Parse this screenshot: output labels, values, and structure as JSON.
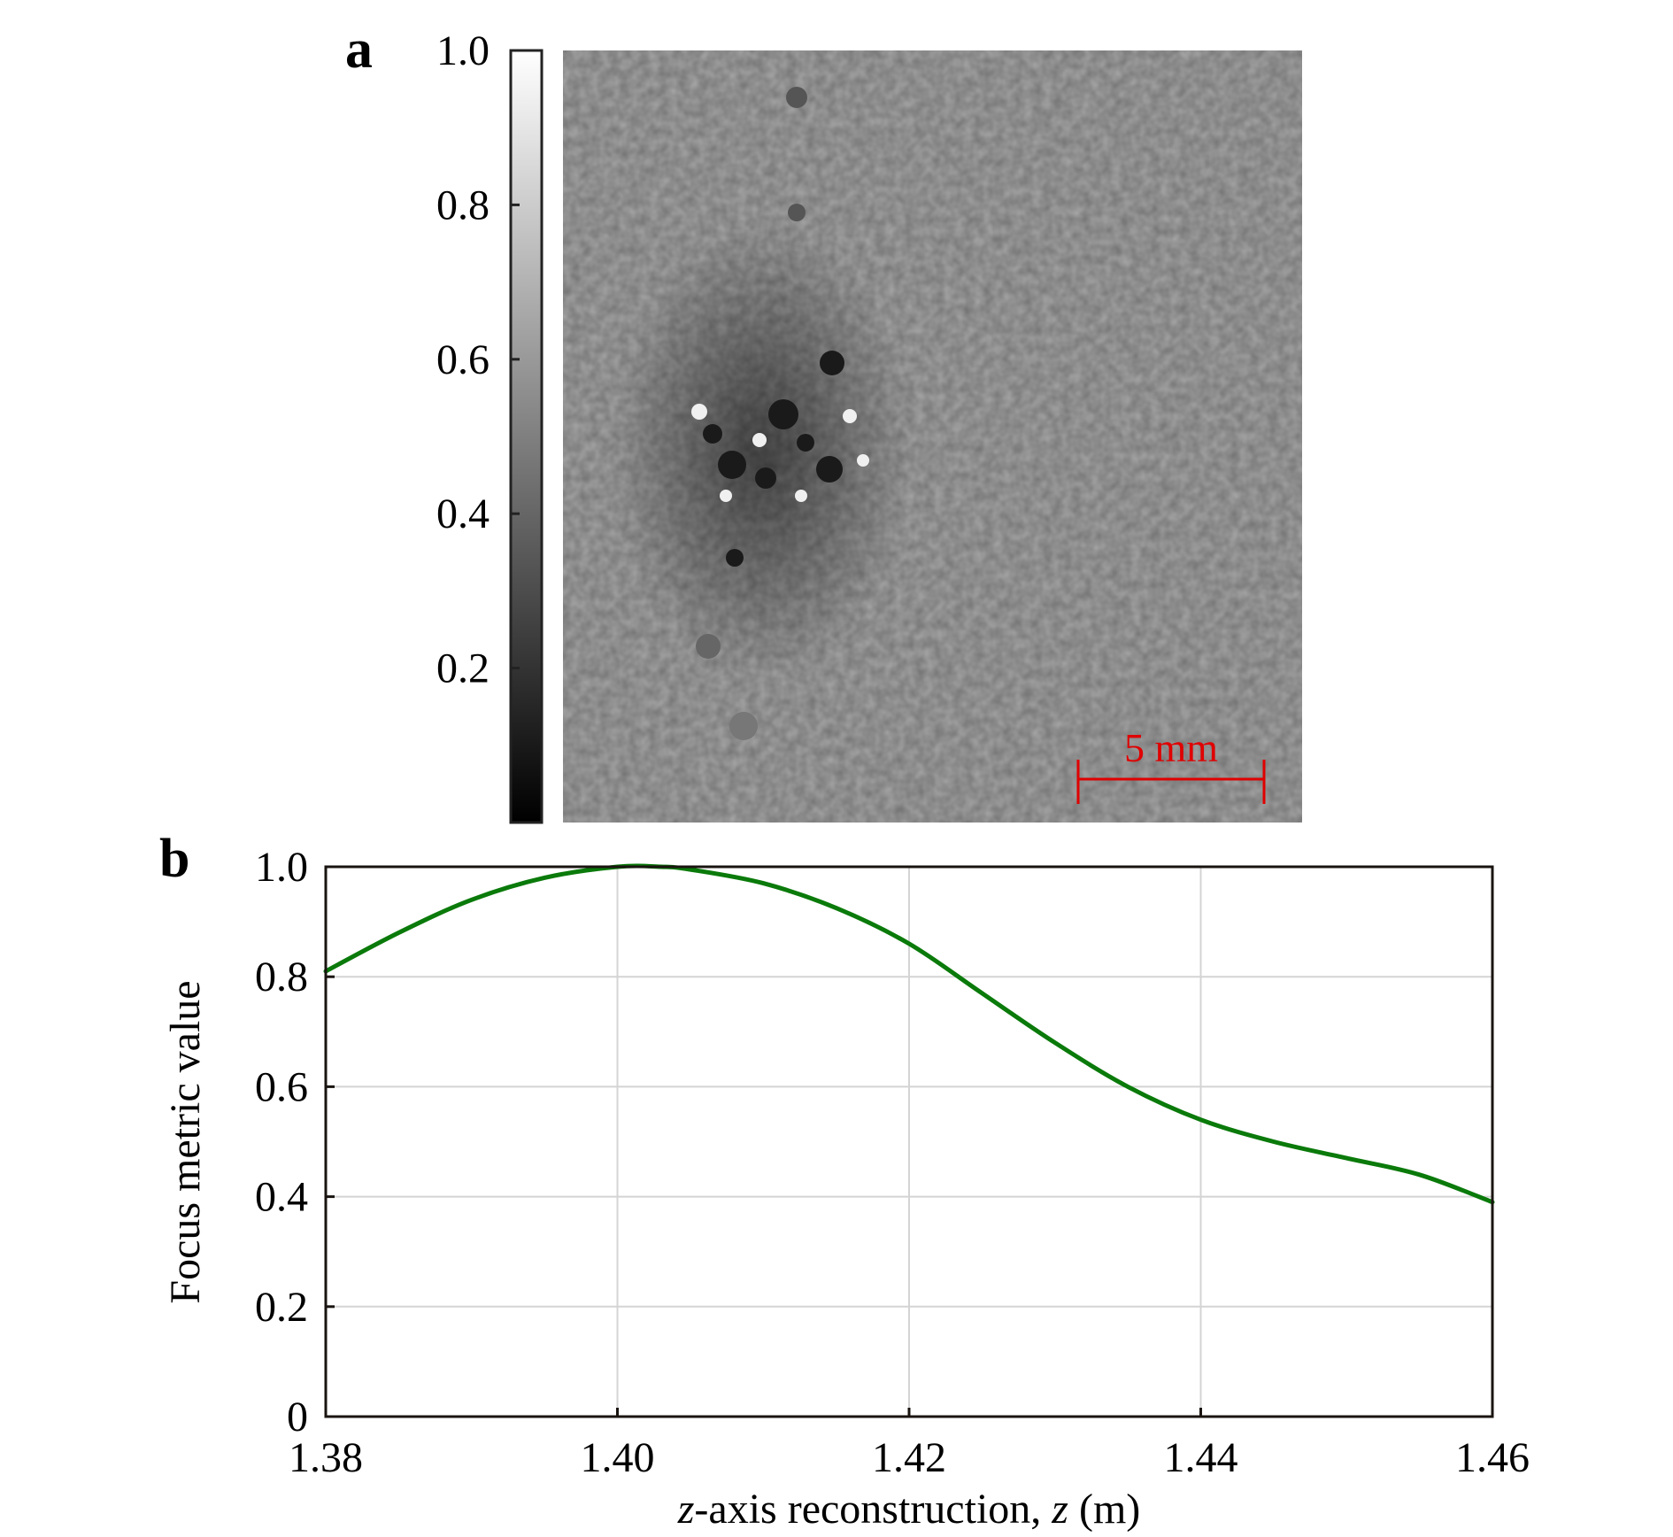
{
  "panel_a": {
    "label": "a",
    "colorbar": {
      "range": [
        0,
        1.0
      ],
      "ticks": [
        "0.2",
        "0.4",
        "0.6",
        "0.8",
        "1.0"
      ]
    },
    "image": {
      "background_color": "#a7a7a7",
      "content": "grayscale reconstructed hologram with dark speckle pattern left of centre"
    },
    "scale_bar": {
      "label": "5 mm",
      "color": "#e00000"
    }
  },
  "chart_data": {
    "type": "line",
    "panel_label": "b",
    "title": "",
    "xlabel_prefix": "z",
    "xlabel_mid": "-axis reconstruction, ",
    "xlabel_var": "z",
    "xlabel_suffix": " (m)",
    "ylabel": "Focus metric value",
    "xlim": [
      1.38,
      1.46
    ],
    "ylim": [
      0,
      1.0
    ],
    "xticks": [
      1.38,
      1.4,
      1.42,
      1.44,
      1.46
    ],
    "xtick_labels": [
      "1.38",
      "1.40",
      "1.42",
      "1.44",
      "1.46"
    ],
    "yticks": [
      0,
      0.2,
      0.4,
      0.6,
      0.8,
      1.0
    ],
    "ytick_labels": [
      "0",
      "0.2",
      "0.4",
      "0.6",
      "0.8",
      "1.0"
    ],
    "grid": true,
    "series": [
      {
        "color": "#0a7a0a",
        "x": [
          1.38,
          1.385,
          1.39,
          1.395,
          1.4,
          1.403,
          1.405,
          1.41,
          1.415,
          1.42,
          1.425,
          1.43,
          1.435,
          1.44,
          1.445,
          1.45,
          1.455,
          1.46
        ],
        "y": [
          0.81,
          0.88,
          0.94,
          0.98,
          1.0,
          1.0,
          0.995,
          0.97,
          0.925,
          0.86,
          0.77,
          0.68,
          0.6,
          0.54,
          0.5,
          0.47,
          0.44,
          0.39
        ]
      }
    ]
  }
}
